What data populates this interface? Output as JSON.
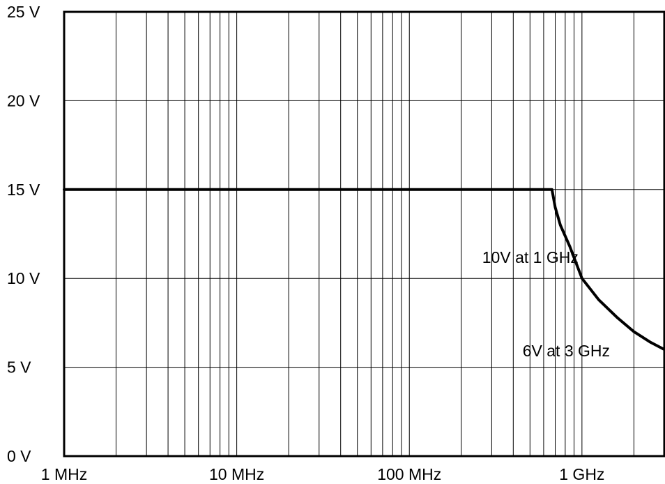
{
  "chart_data": {
    "type": "line",
    "title": "",
    "xlabel": "",
    "ylabel": "",
    "x_scale": "log",
    "xlim": [
      1000000,
      3000000000
    ],
    "ylim": [
      0,
      25
    ],
    "grid": true,
    "x_ticks": [
      {
        "value": 1000000,
        "label": "1 MHz"
      },
      {
        "value": 10000000,
        "label": "10 MHz"
      },
      {
        "value": 100000000,
        "label": "100 MHz"
      },
      {
        "value": 1000000000,
        "label": "1 GHz"
      }
    ],
    "y_ticks": [
      {
        "value": 0,
        "label": "0 V"
      },
      {
        "value": 5,
        "label": "5 V"
      },
      {
        "value": 10,
        "label": "10 V"
      },
      {
        "value": 15,
        "label": "15 V"
      },
      {
        "value": 20,
        "label": "20 V"
      },
      {
        "value": 25,
        "label": "25 V"
      }
    ],
    "series": [
      {
        "color": "#000000",
        "points": [
          {
            "x": 1000000,
            "y": 15
          },
          {
            "x": 670000000,
            "y": 15
          },
          {
            "x": 700000000,
            "y": 14.0
          },
          {
            "x": 750000000,
            "y": 13.0
          },
          {
            "x": 850000000,
            "y": 11.8
          },
          {
            "x": 1000000000,
            "y": 10
          },
          {
            "x": 1250000000,
            "y": 8.8
          },
          {
            "x": 1600000000,
            "y": 7.8
          },
          {
            "x": 2000000000,
            "y": 7.0
          },
          {
            "x": 2500000000,
            "y": 6.4
          },
          {
            "x": 3000000000,
            "y": 6
          }
        ]
      }
    ],
    "annotations": [
      {
        "text": "10V at 1 GHz",
        "x": 1000000000,
        "y": 10,
        "anchor": "end"
      },
      {
        "text": "6V at 3 GHz",
        "x": 3000000000,
        "y": 6,
        "anchor": "end"
      }
    ]
  }
}
